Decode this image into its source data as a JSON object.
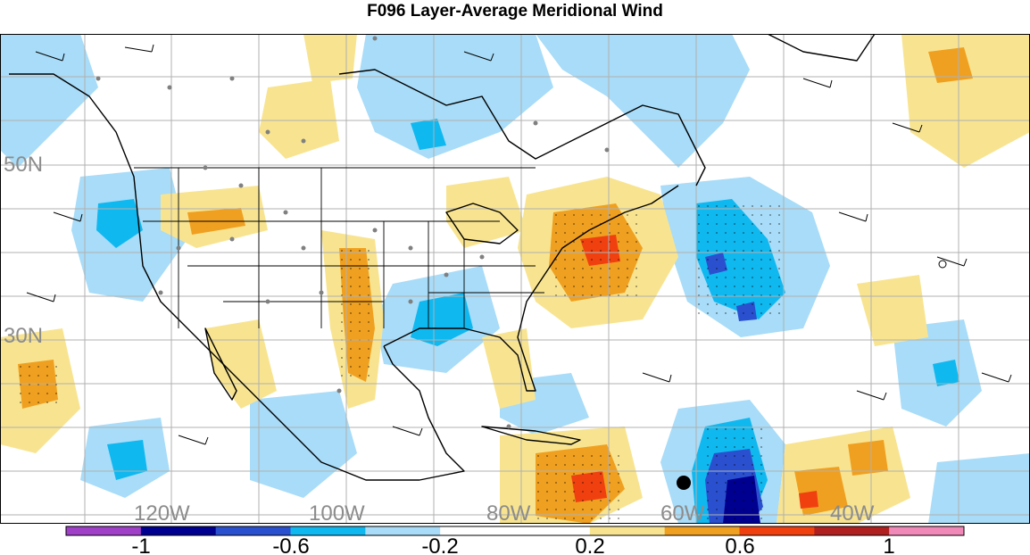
{
  "title": "F096 Layer-Average Meridional Wind",
  "map": {
    "lat_labels": [
      "50N",
      "30N"
    ],
    "lon_labels": [
      "120W",
      "100W",
      "80W",
      "60W",
      "40W"
    ],
    "colors": {
      "background": "#ffffff",
      "grid": "#b0b0b0",
      "coast": "#000000",
      "label_gray": "#8c8c8c",
      "station_dot": "#808080"
    }
  },
  "colorbar": {
    "tick_labels": [
      "-1",
      "-0.6",
      "-0.2",
      "0.2",
      "0.6",
      "1"
    ],
    "colors": [
      "#a040c8",
      "#000090",
      "#2a50d0",
      "#10b8f0",
      "#a8dcf8",
      "#ffffff",
      "#ffffff",
      "#f8e490",
      "#f0a020",
      "#f04010",
      "#b02020",
      "#f088b8"
    ]
  }
}
